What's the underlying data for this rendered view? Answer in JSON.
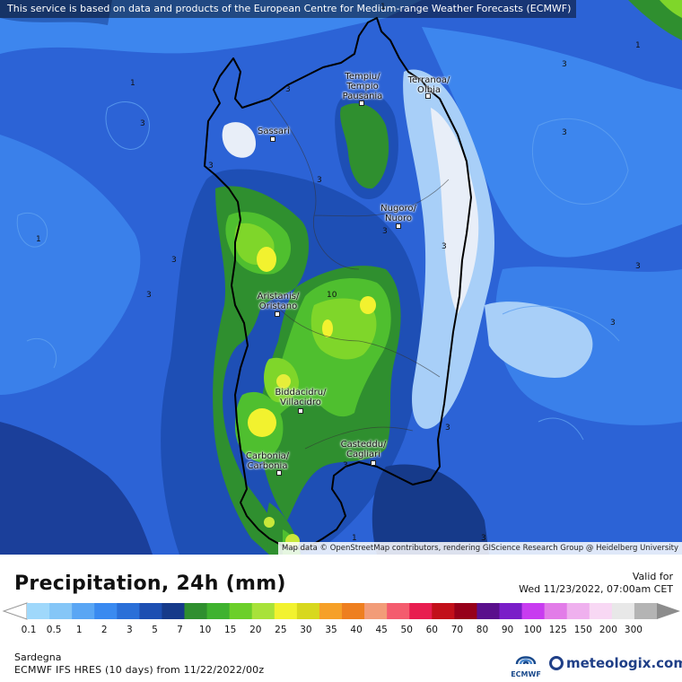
{
  "map": {
    "notice": "This service is based on data and products of the European Centre for Medium-range Weather Forecasts (ECMWF)",
    "attribution": "Map data © OpenStreetMap contributors, rendering GIScience Research Group @ Heidelberg University",
    "cities": [
      {
        "label": "Tempiu/\nTempio\nPausania"
      },
      {
        "label": "Terranoa/\nOlbia"
      },
      {
        "label": "Sassari"
      },
      {
        "label": "Nugoro/\nNuoro"
      },
      {
        "label": "Aristanis/\nOristano"
      },
      {
        "label": "Biddacidru/\nVillacidro"
      },
      {
        "label": "Casteddu/\nCagliari"
      },
      {
        "label": "Carbonia/\nCarbonia"
      }
    ],
    "isolines": [
      "1",
      "1",
      "1",
      "3",
      "3",
      "3",
      "3",
      "3",
      "3",
      "3",
      "3",
      "3",
      "3",
      "3",
      "3",
      "3",
      "3",
      "3",
      "10",
      "1",
      "1"
    ]
  },
  "footer": {
    "title": "Precipitation, 24h (mm)",
    "valid_label": "Valid for",
    "valid_date": "Wed 11/23/2022, 07:00am CET",
    "region": "Sardegna",
    "model_run": "ECMWF IFS HRES (10 days) from 11/22/2022/00z",
    "ecmwf_logo_text": "ECMWF",
    "brand": "meteologix.com"
  },
  "legend": {
    "labels": [
      "0.1",
      "0.5",
      "1",
      "2",
      "3",
      "5",
      "7",
      "10",
      "15",
      "20",
      "25",
      "30",
      "35",
      "40",
      "45",
      "50",
      "60",
      "70",
      "80",
      "90",
      "100",
      "125",
      "150",
      "200",
      "300"
    ],
    "colors": [
      "#9fd8fb",
      "#85c6f7",
      "#5aa6f4",
      "#3a8af0",
      "#2a6fd8",
      "#1d4fb2",
      "#163a8a",
      "#2f8f2f",
      "#3fb22f",
      "#6ccf2a",
      "#a8e23a",
      "#f2f22f",
      "#d8d81e",
      "#f6a028",
      "#ee7f1f",
      "#f29c78",
      "#f45c6e",
      "#e81e50",
      "#c2101a",
      "#96001a",
      "#5a0f8c",
      "#7a1ec8",
      "#c83cf0",
      "#e27ce8",
      "#efb0ee",
      "#f8d8f4",
      "#e8e8e8",
      "#b4b4b4"
    ]
  }
}
